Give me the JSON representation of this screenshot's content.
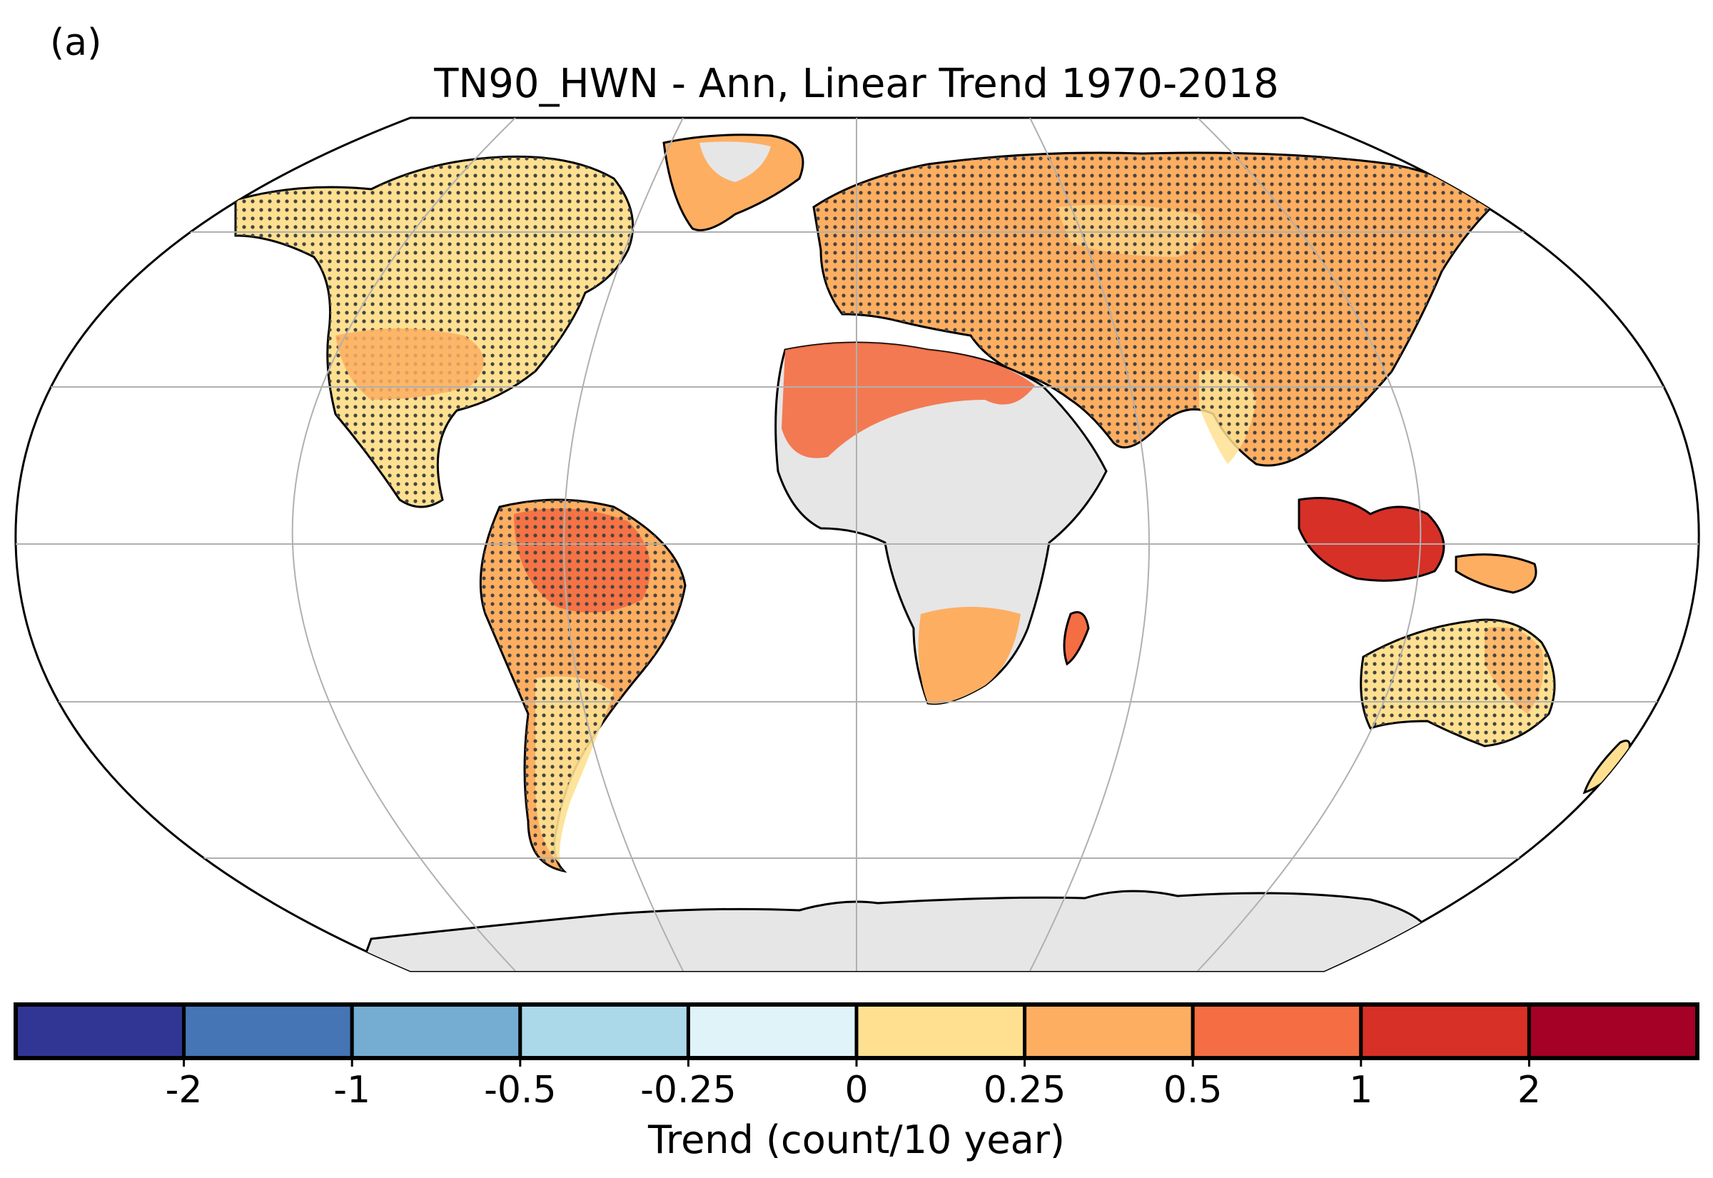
{
  "panel_label": "(a)",
  "title": "TN90_HWN - Ann, Linear Trend 1970-2018",
  "colorbar": {
    "label": "Trend (count/10 year)",
    "ticks": [
      "-2",
      "-1",
      "-0.5",
      "-0.25",
      "0",
      "0.25",
      "0.5",
      "1",
      "2"
    ],
    "colors": [
      "#313695",
      "#4575b4",
      "#74add1",
      "#abd9e9",
      "#e0f3f8",
      "#fee090",
      "#fdae61",
      "#f46d43",
      "#d73027",
      "#a50026"
    ]
  },
  "map": {
    "projection": "Robinson",
    "no_data_color": "#e6e6e6",
    "stippling": "significant trend",
    "regions": [
      {
        "name": "North America",
        "class": "0 to 0.25"
      },
      {
        "name": "South America",
        "class": "0.5 to 1"
      },
      {
        "name": "Europe and Asia",
        "class": "0.25 to 0.5"
      },
      {
        "name": "Sahara",
        "class": "0.5 to 1"
      },
      {
        "name": "Southern Africa",
        "class": "0.25 to 0.5"
      },
      {
        "name": "Maritime Southeast Asia",
        "class": "1 to 2"
      },
      {
        "name": "Australia",
        "class": "0 to 0.25"
      },
      {
        "name": "Greenland interior",
        "class": "no data"
      },
      {
        "name": "Central Africa",
        "class": "no data"
      },
      {
        "name": "Antarctica",
        "class": "no data"
      }
    ]
  }
}
